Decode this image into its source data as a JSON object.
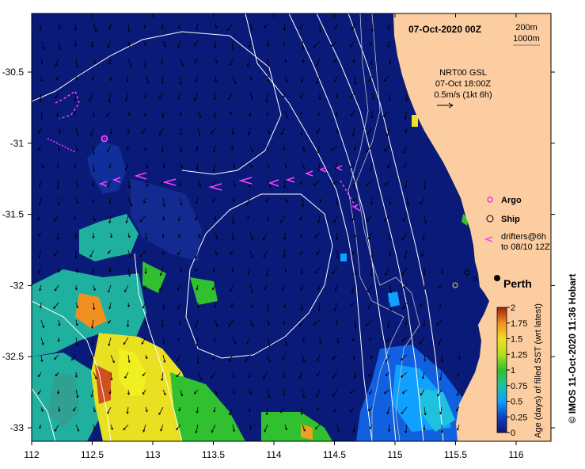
{
  "title": "07-Oct-2020 00Z",
  "depth_contours": [
    "200m",
    "1000m"
  ],
  "current_info": {
    "line1": "NRT00 GSL",
    "line2": "07-Oct 18:00Z",
    "line3": "0.5m/s (1kt 6h)"
  },
  "legend": {
    "argo": "Argo",
    "ship": "Ship",
    "drifters_line1": "drifters@6h",
    "drifters_line2": "to 08/10 12Z"
  },
  "city": "Perth",
  "colorbar": {
    "label": "Age (days) of filled SST (wrt latest)",
    "ticks": [
      "2",
      "1.75",
      "1.5",
      "1.25",
      "1",
      "0.75",
      "0.5",
      "0.25",
      "0"
    ]
  },
  "credit": "© IMOS 11-Oct-2020 11:36 Hobart",
  "axes": {
    "x_ticks": [
      "112",
      "112.5",
      "113",
      "113.5",
      "114",
      "114.5",
      "115",
      "115.5",
      "116"
    ],
    "y_ticks": [
      "-30.5",
      "-31",
      "-31.5",
      "-32",
      "-32.5",
      "-33"
    ]
  },
  "colors": {
    "ocean": "#0a1a78",
    "land": "#fccda0",
    "argo": "#ff40ff",
    "drifter": "#ff40ff",
    "contour": "#ffffff"
  }
}
